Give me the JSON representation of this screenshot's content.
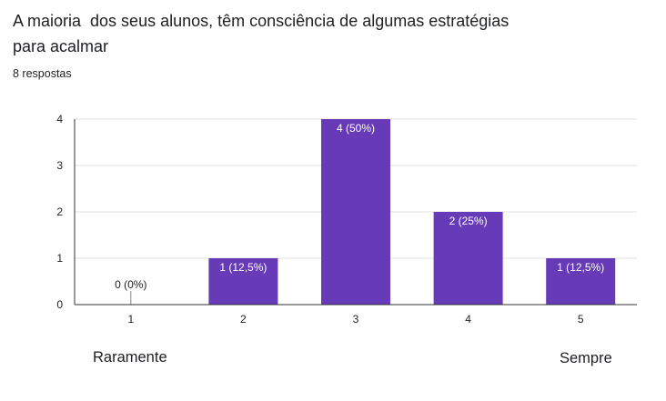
{
  "question": {
    "title": "A maioria  dos seus alunos, têm consciência de algumas estratégias para acalmar",
    "responses": "8 respostas"
  },
  "scale_labels": {
    "low": "Raramente",
    "high": "Sempre"
  },
  "colors": {
    "bar": "#673ab7",
    "grid": "#e0e0e0",
    "axis": "#333333",
    "text": "#202124"
  },
  "chart_data": {
    "type": "bar",
    "title": "",
    "xlabel": "",
    "ylabel": "",
    "categories": [
      "1",
      "2",
      "3",
      "4",
      "5"
    ],
    "values": [
      0,
      1,
      4,
      2,
      1
    ],
    "data_labels": [
      "0 (0%)",
      "1 (12,5%)",
      "4 (50%)",
      "2 (25%)",
      "1 (12,5%)"
    ],
    "ylim": [
      0,
      4
    ],
    "yticks": [
      0,
      1,
      2,
      3,
      4
    ],
    "grid": true,
    "legend": "none"
  }
}
